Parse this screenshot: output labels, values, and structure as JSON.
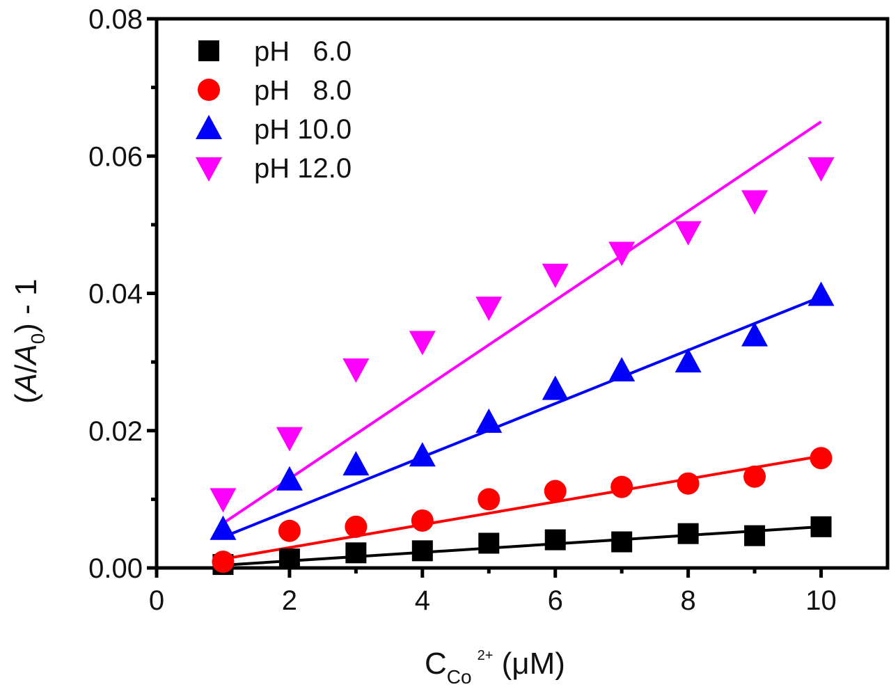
{
  "chart_data": {
    "type": "scatter",
    "xlabel": {
      "main": "C",
      "sub": "Co",
      "sup": "2+",
      "unit": " (μM)"
    },
    "ylabel": {
      "open": "(",
      "a1": "A",
      "slash": "/",
      "a2": "A",
      "sub": "0",
      "close": ") - 1"
    },
    "xlim": [
      0,
      11
    ],
    "ylim": [
      0,
      0.08
    ],
    "xticks": [
      0,
      2,
      4,
      6,
      8,
      10
    ],
    "xtick_labels": [
      "0",
      "2",
      "4",
      "6",
      "8",
      "10"
    ],
    "yticks": [
      0,
      0.02,
      0.04,
      0.06,
      0.08
    ],
    "ytick_labels": [
      "0.00",
      "0.02",
      "0.04",
      "0.06",
      "0.08"
    ],
    "grid": false,
    "legend_position": "top-left",
    "x": [
      1,
      2,
      3,
      4,
      5,
      6,
      7,
      8,
      9,
      10
    ],
    "series": [
      {
        "name": "pH   6.0",
        "marker": "square",
        "color": "#000000",
        "values": [
          0.0005,
          0.0013,
          0.0022,
          0.0025,
          0.0036,
          0.0041,
          0.0038,
          0.005,
          0.0047,
          0.006
        ],
        "fit": [
          0.0004,
          0.006
        ]
      },
      {
        "name": "pH   8.0",
        "marker": "circle",
        "color": "#ff0000",
        "values": [
          0.0009,
          0.0054,
          0.006,
          0.0069,
          0.01,
          0.0112,
          0.0118,
          0.0123,
          0.0133,
          0.016
        ],
        "fit": [
          0.0013,
          0.0163
        ]
      },
      {
        "name": "pH 10.0",
        "marker": "triangle-up",
        "color": "#0000ff",
        "values": [
          0.0056,
          0.0128,
          0.015,
          0.0163,
          0.0212,
          0.026,
          0.0287,
          0.03,
          0.0338,
          0.0397
        ],
        "fit": [
          0.0045,
          0.0395
        ]
      },
      {
        "name": "pH 12.0",
        "marker": "triangle-down",
        "color": "#ff00ff",
        "values": [
          0.0101,
          0.019,
          0.029,
          0.033,
          0.038,
          0.0428,
          0.046,
          0.049,
          0.0535,
          0.0583
        ],
        "fit": [
          0.0065,
          0.065
        ]
      }
    ]
  }
}
